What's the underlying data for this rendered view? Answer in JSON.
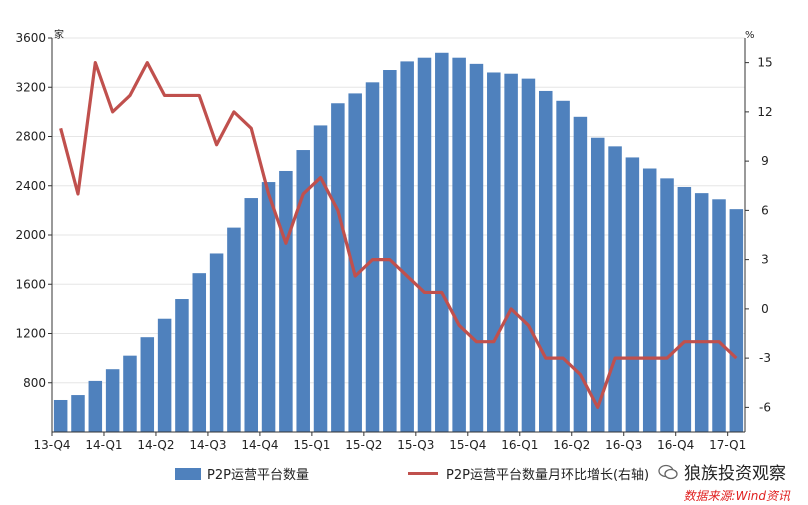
{
  "chart_data": {
    "type": "bar+line",
    "left_axis_unit": "家",
    "right_axis_unit": "%",
    "left_ylim": [
      400,
      3600
    ],
    "left_ticks": [
      800,
      1200,
      1600,
      2000,
      2400,
      2800,
      3200,
      3600
    ],
    "right_ylim": [
      -7.5,
      16.5
    ],
    "right_ticks": [
      -6,
      -3,
      0,
      3,
      6,
      9,
      12,
      15
    ],
    "x_labels": [
      "13-Q4",
      "14-Q1",
      "14-Q2",
      "14-Q3",
      "14-Q4",
      "15-Q1",
      "15-Q2",
      "15-Q3",
      "15-Q4",
      "16-Q1",
      "16-Q2",
      "16-Q3",
      "16-Q4",
      "17-Q1"
    ],
    "series": [
      {
        "name": "P2P运营平台数量",
        "axis": "left",
        "kind": "bar",
        "color": "#4f81bd",
        "values": [
          660,
          700,
          815,
          910,
          1020,
          1170,
          1320,
          1480,
          1690,
          1850,
          2060,
          2300,
          2430,
          2520,
          2690,
          2890,
          3070,
          3150,
          3240,
          3340,
          3410,
          3440,
          3480,
          3440,
          3390,
          3320,
          3310,
          3270,
          3170,
          3090,
          2960,
          2790,
          2720,
          2630,
          2540,
          2460,
          2390,
          2340,
          2290,
          2210
        ]
      },
      {
        "name": "P2P运营平台数量月环比增长(右轴)",
        "axis": "right",
        "kind": "line",
        "color": "#c0504d",
        "values": [
          11,
          7,
          15,
          12,
          13,
          15,
          13,
          13,
          13,
          10,
          12,
          11,
          7,
          4,
          7,
          8,
          6,
          2,
          3,
          3,
          2,
          1,
          1,
          -1,
          -2,
          -2,
          0,
          -1,
          -3,
          -3,
          -4,
          -6,
          -3,
          -3,
          -3,
          -3,
          -2,
          -2,
          -2,
          -3
        ]
      }
    ]
  },
  "legend": {
    "bar_label": "P2P运营平台数量",
    "line_label": "P2P运营平台数量月环比增长(右轴)"
  },
  "watermark": "狼族投资观察",
  "source": "数据来源:Wind资讯"
}
